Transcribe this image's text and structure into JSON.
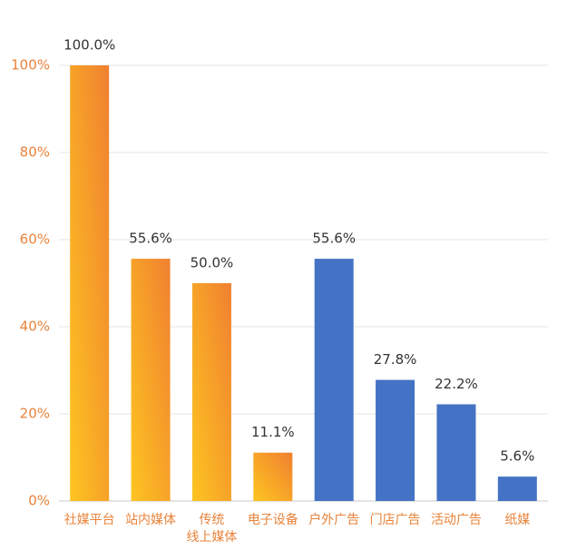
{
  "chart_data": {
    "type": "bar",
    "categories": [
      "社媒平台",
      "站内媒体",
      "传统\n线上媒体",
      "电子设备",
      "户外广告",
      "门店广告",
      "活动广告",
      "纸媒"
    ],
    "values": [
      100.0,
      55.6,
      50.0,
      11.1,
      55.6,
      27.8,
      22.2,
      5.6
    ],
    "value_labels": [
      "100.0%",
      "55.6%",
      "50.0%",
      "11.1%",
      "55.6%",
      "27.8%",
      "22.2%",
      "5.6%"
    ],
    "colors": [
      "#f08030",
      "#f08030",
      "#f08030",
      "#f08030",
      "#4472c4",
      "#4472c4",
      "#4472c4",
      "#4472c4"
    ],
    "ylim": [
      0,
      100
    ],
    "yticks": [
      {
        "value": 0,
        "label": "0%"
      },
      {
        "value": 20,
        "label": "20%"
      },
      {
        "value": 40,
        "label": "40%"
      },
      {
        "value": 60,
        "label": "60%"
      },
      {
        "value": 80,
        "label": "80%"
      },
      {
        "value": 100,
        "label": "100%"
      }
    ],
    "grid": true
  }
}
